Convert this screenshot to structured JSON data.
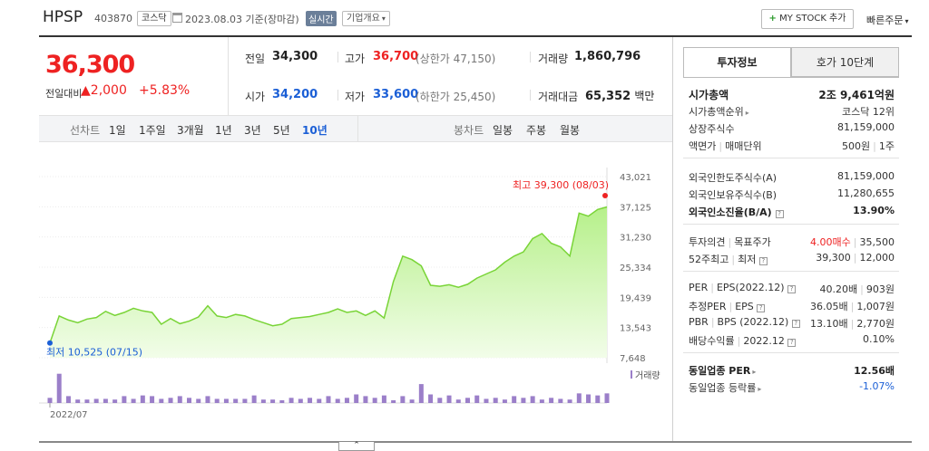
{
  "header": {
    "name": "HPSP",
    "code": "403870",
    "market": "코스닥",
    "date": "2023.08.03 기준(장마감)",
    "realtime": "실시간",
    "company_overview": "기업개요",
    "my_stock": "MY STOCK 추가",
    "quick_order": "빠른주문"
  },
  "price": {
    "current": "36,300",
    "change_label": "전일대비",
    "change": "2,000",
    "change_pct": "+5.83%"
  },
  "stats": {
    "prev_label": "전일",
    "prev": "34,300",
    "high_label": "고가",
    "high": "36,700",
    "upper_limit": "(상한가 47,150)",
    "volume_label": "거래량",
    "volume": "1,860,796",
    "open_label": "시가",
    "open": "34,200",
    "low_label": "저가",
    "low": "33,600",
    "lower_limit": "(하한가 25,450)",
    "amount_label": "거래대금",
    "amount": "65,352",
    "amount_unit": "백만"
  },
  "period_tabs": {
    "label": "선차트",
    "items": [
      "1일",
      "1주일",
      "3개월",
      "1년",
      "3년",
      "5년",
      "10년"
    ],
    "active": "10년"
  },
  "candle_tabs": {
    "label": "봉차트",
    "items": [
      "일봉",
      "주봉",
      "월봉"
    ]
  },
  "chart_data": {
    "type": "area",
    "y_ticks": [
      "43,021",
      "37,125",
      "31,230",
      "25,334",
      "19,439",
      "13,543",
      "7,648"
    ],
    "ylim": [
      7648,
      43021
    ],
    "x_tick": "2022/07",
    "high_annotation": "최고 39,300 (08/03)",
    "low_annotation": "최저 10,525 (07/15)",
    "volume_legend": "거래량",
    "price": [
      10525,
      15800,
      15000,
      14500,
      15200,
      15500,
      16700,
      15900,
      16500,
      17300,
      16800,
      16500,
      14200,
      15300,
      14300,
      14800,
      15600,
      17800,
      15800,
      15500,
      16100,
      15800,
      15100,
      14500,
      13900,
      14200,
      15300,
      15500,
      15700,
      16100,
      16500,
      17200,
      16500,
      16800,
      15900,
      16800,
      15400,
      22500,
      27500,
      26800,
      25600,
      21800,
      21600,
      21900,
      21400,
      22000,
      23200,
      24000,
      24800,
      26300,
      27500,
      28300,
      30900,
      31900,
      30000,
      29300,
      27500,
      35900,
      35300,
      36600,
      37100
    ],
    "volume": [
      0.15,
      0.85,
      0.2,
      0.1,
      0.1,
      0.12,
      0.12,
      0.1,
      0.2,
      0.12,
      0.22,
      0.2,
      0.12,
      0.15,
      0.2,
      0.15,
      0.12,
      0.2,
      0.12,
      0.12,
      0.12,
      0.12,
      0.22,
      0.1,
      0.1,
      0.08,
      0.15,
      0.12,
      0.15,
      0.12,
      0.2,
      0.12,
      0.15,
      0.25,
      0.2,
      0.15,
      0.22,
      0.08,
      0.2,
      0.1,
      0.55,
      0.25,
      0.15,
      0.22,
      0.1,
      0.15,
      0.22,
      0.12,
      0.15,
      0.1,
      0.2,
      0.15,
      0.2,
      0.1,
      0.15,
      0.12,
      0.1,
      0.28,
      0.25,
      0.22,
      0.28
    ]
  },
  "tabs": {
    "invest_info": "투자정보",
    "order_book": "호가 10단계"
  },
  "info": {
    "market_cap_label": "시가총액",
    "market_cap": "2조 9,461억원",
    "rank_label": "시가총액순위",
    "rank": "코스닥 12위",
    "shares_label": "상장주식수",
    "shares": "81,159,000",
    "par_label": "액면가",
    "trade_unit_label": "매매단위",
    "par": "500원",
    "trade_unit": "1주",
    "foreign_limit_label": "외국인한도주식수(A)",
    "foreign_limit": "81,159,000",
    "foreign_hold_label": "외국인보유주식수(B)",
    "foreign_hold": "11,280,655",
    "foreign_ratio_label": "외국인소진율(B/A)",
    "foreign_ratio": "13.90%",
    "opinion_label": "투자의견",
    "target_label": "목표주가",
    "opinion": "4.00매수",
    "target": "35,500",
    "w52_label": "52주최고",
    "w52_low_label": "최저",
    "w52_high": "39,300",
    "w52_low": "12,000",
    "per_label": "PER",
    "eps_label": "EPS(2022.12)",
    "per": "40.20배",
    "eps": "903원",
    "est_per_label": "추정PER",
    "est_eps_label": "EPS",
    "est_per": "36.05배",
    "est_eps": "1,007원",
    "pbr_label": "PBR",
    "bps_label": "BPS (2022.12)",
    "pbr": "13.10배",
    "bps": "2,770원",
    "div_label": "배당수익률",
    "div_date": "2022.12",
    "div": "0.10%",
    "ind_per_label": "동일업종 PER",
    "ind_per": "12.56배",
    "ind_rate_label": "동일업종 등락률",
    "ind_rate": "-1.07%"
  }
}
